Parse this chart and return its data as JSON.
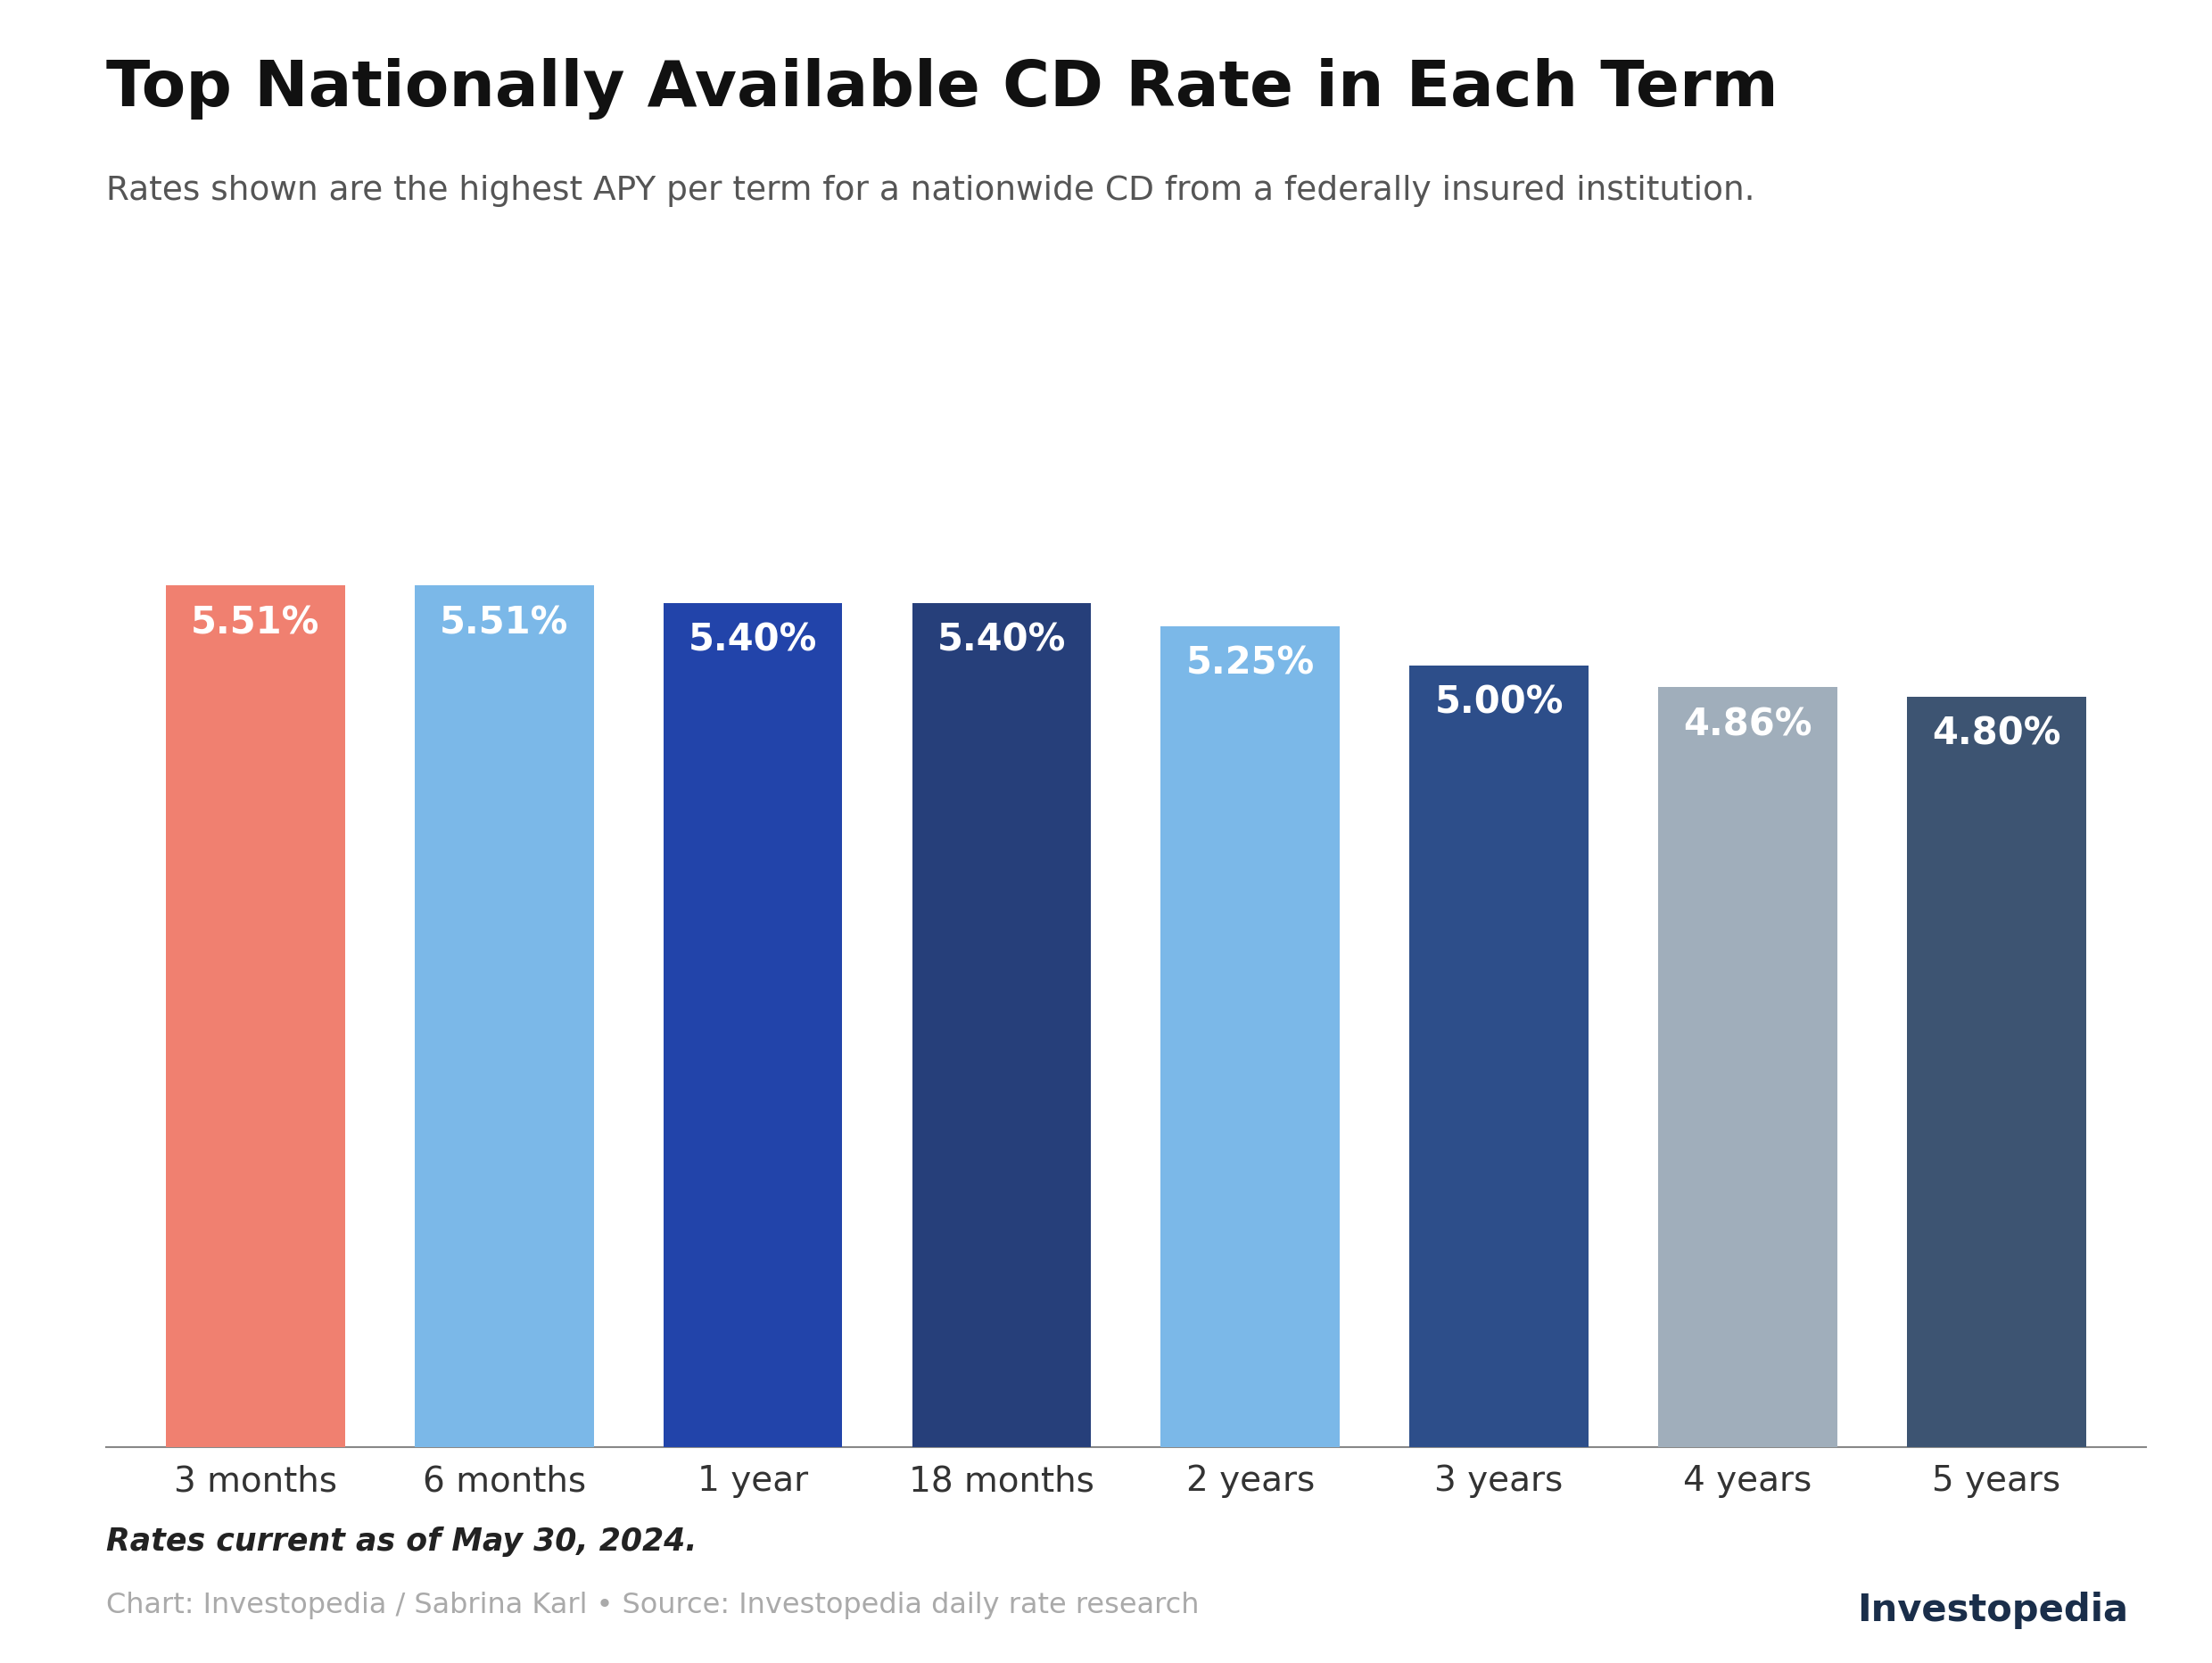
{
  "title": "Top Nationally Available CD Rate in Each Term",
  "subtitle": "Rates shown are the highest APY per term for a nationwide CD from a federally insured institution.",
  "categories": [
    "3 months",
    "6 months",
    "1 year",
    "18 months",
    "2 years",
    "3 years",
    "4 years",
    "5 years"
  ],
  "values": [
    5.51,
    5.51,
    5.4,
    5.4,
    5.25,
    5.0,
    4.86,
    4.8
  ],
  "bar_colors": [
    "#F08070",
    "#7BB8E8",
    "#2244AA",
    "#263F7A",
    "#7BB8E8",
    "#2D4E8A",
    "#A0AEBB",
    "#3D5472"
  ],
  "label_color": "#ffffff",
  "background_color": "#ffffff",
  "footnote": "Rates current as of May 30, 2024.",
  "source": "Chart: Investopedia / Sabrina Karl • Source: Investopedia daily rate research",
  "ylim": [
    0,
    7.5
  ],
  "title_fontsize": 52,
  "subtitle_fontsize": 27,
  "label_fontsize": 30,
  "tick_fontsize": 28,
  "footnote_fontsize": 25,
  "source_fontsize": 23,
  "logo_fontsize": 30
}
